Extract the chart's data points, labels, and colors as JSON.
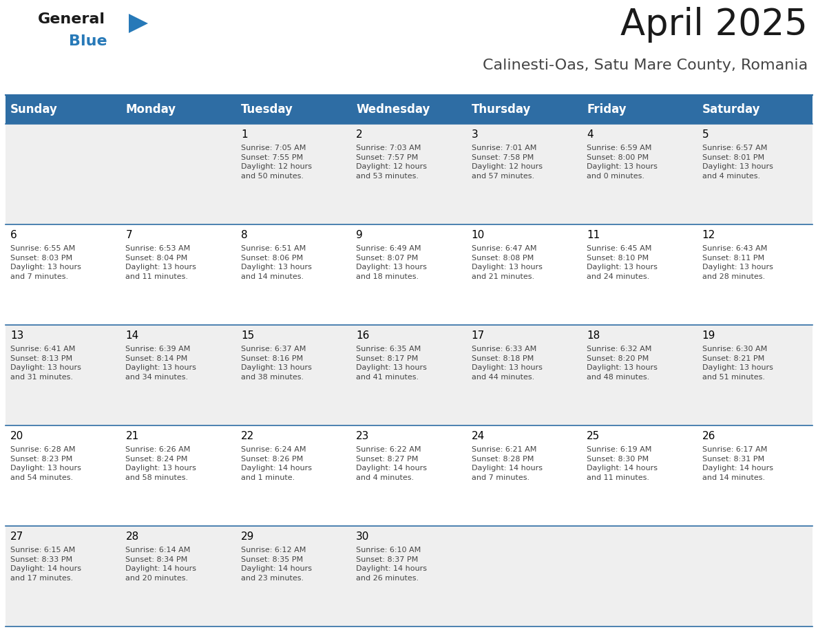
{
  "title": "April 2025",
  "subtitle": "Calinesti-Oas, Satu Mare County, Romania",
  "header_bg": "#2E6DA4",
  "header_text": "#FFFFFF",
  "row_bg_odd": "#EFEFEF",
  "row_bg_even": "#FFFFFF",
  "day_headers": [
    "Sunday",
    "Monday",
    "Tuesday",
    "Wednesday",
    "Thursday",
    "Friday",
    "Saturday"
  ],
  "cell_border_color": "#2E6DA4",
  "day_number_color": "#000000",
  "cell_text_color": "#444444",
  "logo_general_color": "#1a1a1a",
  "logo_blue_color": "#2779B8",
  "title_fontsize": 38,
  "subtitle_fontsize": 16,
  "header_fontsize": 12,
  "day_num_fontsize": 11,
  "cell_text_fontsize": 8,
  "weeks": [
    [
      {
        "day": "",
        "info": ""
      },
      {
        "day": "",
        "info": ""
      },
      {
        "day": "1",
        "info": "Sunrise: 7:05 AM\nSunset: 7:55 PM\nDaylight: 12 hours\nand 50 minutes."
      },
      {
        "day": "2",
        "info": "Sunrise: 7:03 AM\nSunset: 7:57 PM\nDaylight: 12 hours\nand 53 minutes."
      },
      {
        "day": "3",
        "info": "Sunrise: 7:01 AM\nSunset: 7:58 PM\nDaylight: 12 hours\nand 57 minutes."
      },
      {
        "day": "4",
        "info": "Sunrise: 6:59 AM\nSunset: 8:00 PM\nDaylight: 13 hours\nand 0 minutes."
      },
      {
        "day": "5",
        "info": "Sunrise: 6:57 AM\nSunset: 8:01 PM\nDaylight: 13 hours\nand 4 minutes."
      }
    ],
    [
      {
        "day": "6",
        "info": "Sunrise: 6:55 AM\nSunset: 8:03 PM\nDaylight: 13 hours\nand 7 minutes."
      },
      {
        "day": "7",
        "info": "Sunrise: 6:53 AM\nSunset: 8:04 PM\nDaylight: 13 hours\nand 11 minutes."
      },
      {
        "day": "8",
        "info": "Sunrise: 6:51 AM\nSunset: 8:06 PM\nDaylight: 13 hours\nand 14 minutes."
      },
      {
        "day": "9",
        "info": "Sunrise: 6:49 AM\nSunset: 8:07 PM\nDaylight: 13 hours\nand 18 minutes."
      },
      {
        "day": "10",
        "info": "Sunrise: 6:47 AM\nSunset: 8:08 PM\nDaylight: 13 hours\nand 21 minutes."
      },
      {
        "day": "11",
        "info": "Sunrise: 6:45 AM\nSunset: 8:10 PM\nDaylight: 13 hours\nand 24 minutes."
      },
      {
        "day": "12",
        "info": "Sunrise: 6:43 AM\nSunset: 8:11 PM\nDaylight: 13 hours\nand 28 minutes."
      }
    ],
    [
      {
        "day": "13",
        "info": "Sunrise: 6:41 AM\nSunset: 8:13 PM\nDaylight: 13 hours\nand 31 minutes."
      },
      {
        "day": "14",
        "info": "Sunrise: 6:39 AM\nSunset: 8:14 PM\nDaylight: 13 hours\nand 34 minutes."
      },
      {
        "day": "15",
        "info": "Sunrise: 6:37 AM\nSunset: 8:16 PM\nDaylight: 13 hours\nand 38 minutes."
      },
      {
        "day": "16",
        "info": "Sunrise: 6:35 AM\nSunset: 8:17 PM\nDaylight: 13 hours\nand 41 minutes."
      },
      {
        "day": "17",
        "info": "Sunrise: 6:33 AM\nSunset: 8:18 PM\nDaylight: 13 hours\nand 44 minutes."
      },
      {
        "day": "18",
        "info": "Sunrise: 6:32 AM\nSunset: 8:20 PM\nDaylight: 13 hours\nand 48 minutes."
      },
      {
        "day": "19",
        "info": "Sunrise: 6:30 AM\nSunset: 8:21 PM\nDaylight: 13 hours\nand 51 minutes."
      }
    ],
    [
      {
        "day": "20",
        "info": "Sunrise: 6:28 AM\nSunset: 8:23 PM\nDaylight: 13 hours\nand 54 minutes."
      },
      {
        "day": "21",
        "info": "Sunrise: 6:26 AM\nSunset: 8:24 PM\nDaylight: 13 hours\nand 58 minutes."
      },
      {
        "day": "22",
        "info": "Sunrise: 6:24 AM\nSunset: 8:26 PM\nDaylight: 14 hours\nand 1 minute."
      },
      {
        "day": "23",
        "info": "Sunrise: 6:22 AM\nSunset: 8:27 PM\nDaylight: 14 hours\nand 4 minutes."
      },
      {
        "day": "24",
        "info": "Sunrise: 6:21 AM\nSunset: 8:28 PM\nDaylight: 14 hours\nand 7 minutes."
      },
      {
        "day": "25",
        "info": "Sunrise: 6:19 AM\nSunset: 8:30 PM\nDaylight: 14 hours\nand 11 minutes."
      },
      {
        "day": "26",
        "info": "Sunrise: 6:17 AM\nSunset: 8:31 PM\nDaylight: 14 hours\nand 14 minutes."
      }
    ],
    [
      {
        "day": "27",
        "info": "Sunrise: 6:15 AM\nSunset: 8:33 PM\nDaylight: 14 hours\nand 17 minutes."
      },
      {
        "day": "28",
        "info": "Sunrise: 6:14 AM\nSunset: 8:34 PM\nDaylight: 14 hours\nand 20 minutes."
      },
      {
        "day": "29",
        "info": "Sunrise: 6:12 AM\nSunset: 8:35 PM\nDaylight: 14 hours\nand 23 minutes."
      },
      {
        "day": "30",
        "info": "Sunrise: 6:10 AM\nSunset: 8:37 PM\nDaylight: 14 hours\nand 26 minutes."
      },
      {
        "day": "",
        "info": ""
      },
      {
        "day": "",
        "info": ""
      },
      {
        "day": "",
        "info": ""
      }
    ]
  ]
}
